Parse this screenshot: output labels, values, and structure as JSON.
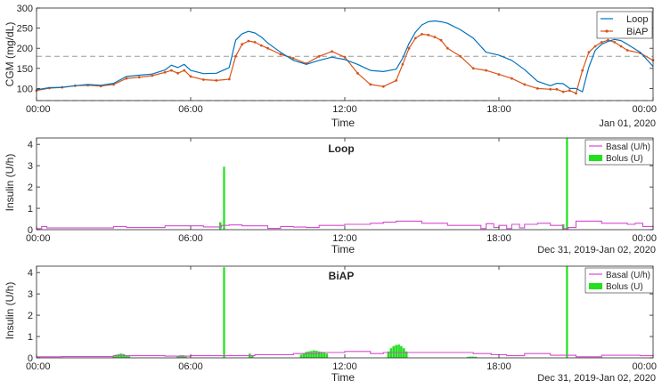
{
  "colors": {
    "loop": "#0072BD",
    "biap": "#D95319",
    "basal": "#D44BD0",
    "bolus": "#22E01C",
    "reference": "#9A9A9A",
    "axis": "#262626"
  },
  "chart_data": [
    {
      "type": "line",
      "title": "",
      "xlabel": "Time",
      "ylabel": "CGM (mg/dL)",
      "date_label": "Jan 01, 2020",
      "xlim": [
        0,
        24
      ],
      "ylim": [
        70,
        300
      ],
      "x_ticks": [
        0,
        6,
        12,
        18,
        24
      ],
      "x_tick_labels": [
        "00:00",
        "06:00",
        "12:00",
        "18:00",
        "00:00"
      ],
      "y_ticks": [
        100,
        150,
        200,
        250,
        300
      ],
      "y_tick_labels": [
        "100",
        "150",
        "200",
        "250",
        "300"
      ],
      "reference_lines": [
        {
          "y": 180,
          "style": "dashed"
        },
        {
          "y": 70,
          "style": "dashed"
        }
      ],
      "legend": {
        "placement": "top-right",
        "entries": [
          "Loop",
          "BiAP"
        ]
      },
      "series": [
        {
          "name": "Loop",
          "x": [
            0,
            0.5,
            1,
            1.5,
            2,
            2.5,
            3,
            3.5,
            4,
            4.5,
            5,
            5.25,
            5.5,
            5.75,
            6,
            6.5,
            7,
            7.5,
            7.75,
            8,
            8.25,
            8.5,
            8.75,
            9,
            9.5,
            10,
            10.5,
            11,
            11.5,
            12,
            12.5,
            13,
            13.5,
            14,
            14.25,
            14.5,
            14.75,
            15,
            15.25,
            15.5,
            15.75,
            16,
            16.5,
            17,
            17.5,
            18,
            18.5,
            19,
            19.5,
            20,
            20.25,
            20.5,
            20.75,
            21,
            21.25,
            21.5,
            21.75,
            22,
            22.25,
            22.5,
            22.75,
            23,
            23.5,
            24
          ],
          "values": [
            97,
            102,
            103,
            107,
            110,
            108,
            113,
            130,
            133,
            136,
            146,
            158,
            152,
            160,
            145,
            137,
            138,
            152,
            220,
            236,
            242,
            238,
            228,
            213,
            190,
            170,
            160,
            170,
            178,
            172,
            160,
            145,
            142,
            148,
            175,
            212,
            240,
            258,
            266,
            268,
            266,
            262,
            246,
            225,
            190,
            183,
            170,
            147,
            118,
            107,
            113,
            112,
            100,
            100,
            92,
            153,
            195,
            210,
            217,
            222,
            219,
            210,
            190,
            155
          ]
        },
        {
          "name": "BiAP",
          "x": [
            0,
            0.5,
            1,
            1.5,
            2,
            2.5,
            3,
            3.5,
            4,
            4.5,
            5,
            5.25,
            5.5,
            5.75,
            6,
            6.5,
            7,
            7.5,
            7.75,
            8,
            8.25,
            8.5,
            8.75,
            9,
            9.5,
            10,
            10.5,
            11,
            11.5,
            12,
            12.5,
            13,
            13.5,
            14,
            14.25,
            14.5,
            14.75,
            15,
            15.25,
            15.5,
            15.75,
            16,
            16.5,
            17,
            17.5,
            18,
            18.5,
            19,
            19.5,
            20,
            20.25,
            20.5,
            20.75,
            21,
            21.25,
            21.5,
            21.75,
            22,
            22.25,
            22.5,
            22.75,
            23,
            23.5,
            24
          ],
          "values": [
            95,
            101,
            103,
            107,
            108,
            106,
            110,
            125,
            128,
            132,
            140,
            145,
            138,
            145,
            130,
            122,
            120,
            123,
            180,
            210,
            218,
            215,
            207,
            200,
            185,
            175,
            162,
            180,
            192,
            178,
            138,
            110,
            105,
            120,
            160,
            200,
            225,
            235,
            233,
            228,
            220,
            200,
            180,
            150,
            145,
            135,
            125,
            110,
            100,
            98,
            98,
            92,
            95,
            88,
            145,
            190,
            205,
            215,
            220,
            215,
            205,
            195,
            188,
            170
          ]
        }
      ]
    },
    {
      "type": "bar",
      "title": "Loop",
      "xlabel": "Time",
      "ylabel": "Insulin (U/h)",
      "date_label": "Dec 31, 2019-Jan 02, 2020",
      "xlim": [
        0,
        24
      ],
      "ylim": [
        0,
        4.3
      ],
      "x_ticks": [
        0,
        6,
        12,
        18,
        24
      ],
      "x_tick_labels": [
        "00:00",
        "06:00",
        "12:00",
        "18:00",
        "00:00"
      ],
      "y_ticks": [
        0,
        1,
        2,
        3,
        4
      ],
      "y_tick_labels": [
        "0",
        "1",
        "2",
        "3",
        "4"
      ],
      "legend": {
        "placement": "top-right",
        "entries": [
          "Basal (U/h)",
          "Bolus (U)"
        ]
      },
      "series": [
        {
          "name": "Basal (U/h)",
          "kind": "step",
          "x": [
            0,
            0.2,
            0.4,
            1,
            3,
            3.5,
            5,
            6.5,
            7.2,
            7.5,
            8,
            9,
            9.5,
            10,
            10.5,
            11,
            12,
            13,
            13.5,
            14,
            15,
            16,
            17.3,
            17.5,
            17.8,
            18,
            18.3,
            18.5,
            18.8,
            19,
            19.5,
            20,
            20.5,
            20.7,
            21,
            22,
            23,
            23.3,
            23.6,
            24
          ],
          "values": [
            0.05,
            0.15,
            0.08,
            0.08,
            0.15,
            0.1,
            0.18,
            0.13,
            0.2,
            0.22,
            0.18,
            0.06,
            0.15,
            0.12,
            0.1,
            0.2,
            0.25,
            0.3,
            0.35,
            0.4,
            0.3,
            0.2,
            0.05,
            0.28,
            0.1,
            0.2,
            0.05,
            0.25,
            0.08,
            0.25,
            0.3,
            0.2,
            0.05,
            0.1,
            0.4,
            0.3,
            0.25,
            0.3,
            0.15,
            0.2
          ]
        },
        {
          "name": "Bolus (U)",
          "kind": "bar",
          "x": [
            7.15,
            7.3,
            20.5,
            20.65
          ],
          "values": [
            0.35,
            2.95,
            0.25,
            4.3
          ]
        }
      ]
    },
    {
      "type": "bar",
      "title": "BiAP",
      "xlabel": "Time",
      "ylabel": "Insulin (U/h)",
      "date_label": "Dec 31, 2019-Jan 02, 2020",
      "xlim": [
        0,
        24
      ],
      "ylim": [
        0,
        4.3
      ],
      "x_ticks": [
        0,
        6,
        12,
        18,
        24
      ],
      "x_tick_labels": [
        "00:00",
        "06:00",
        "12:00",
        "18:00",
        "00:00"
      ],
      "y_ticks": [
        0,
        1,
        2,
        3,
        4
      ],
      "y_tick_labels": [
        "0",
        "1",
        "2",
        "3",
        "4"
      ],
      "legend": {
        "placement": "top-right",
        "entries": [
          "Basal (U/h)",
          "Bolus (U)"
        ]
      },
      "series": [
        {
          "name": "Basal (U/h)",
          "kind": "step",
          "x": [
            0,
            1,
            3,
            5,
            6,
            7.2,
            8.5,
            10,
            11,
            12,
            13,
            13.5,
            17,
            17.7,
            18.3,
            19,
            20,
            21,
            22,
            23.5,
            24
          ],
          "values": [
            0.05,
            0.06,
            0.1,
            0.08,
            0.1,
            0.1,
            0.15,
            0.2,
            0.25,
            0.3,
            0.2,
            0.25,
            0.2,
            0.15,
            0.1,
            0.2,
            0.12,
            0.05,
            0.12,
            0.1,
            0.1
          ]
        },
        {
          "name": "Bolus (U)",
          "kind": "bar",
          "x": [
            3.0,
            3.1,
            3.2,
            3.3,
            3.4,
            3.5,
            3.6,
            5.5,
            5.6,
            5.7,
            5.8,
            7.3,
            8.3,
            8.4,
            10.3,
            10.4,
            10.5,
            10.6,
            10.7,
            10.8,
            10.9,
            11.0,
            11.1,
            11.2,
            11.3,
            13.7,
            13.8,
            13.9,
            14.0,
            14.1,
            14.2,
            14.3,
            14.4,
            16.8,
            16.9,
            17.0,
            17.1,
            20.65
          ],
          "values": [
            0.1,
            0.15,
            0.18,
            0.2,
            0.18,
            0.12,
            0.08,
            0.08,
            0.12,
            0.12,
            0.06,
            4.25,
            0.2,
            0.12,
            0.15,
            0.22,
            0.28,
            0.3,
            0.32,
            0.35,
            0.33,
            0.3,
            0.28,
            0.25,
            0.2,
            0.3,
            0.45,
            0.55,
            0.6,
            0.62,
            0.55,
            0.45,
            0.3,
            0.05,
            0.06,
            0.06,
            0.05,
            4.3
          ]
        }
      ]
    }
  ]
}
